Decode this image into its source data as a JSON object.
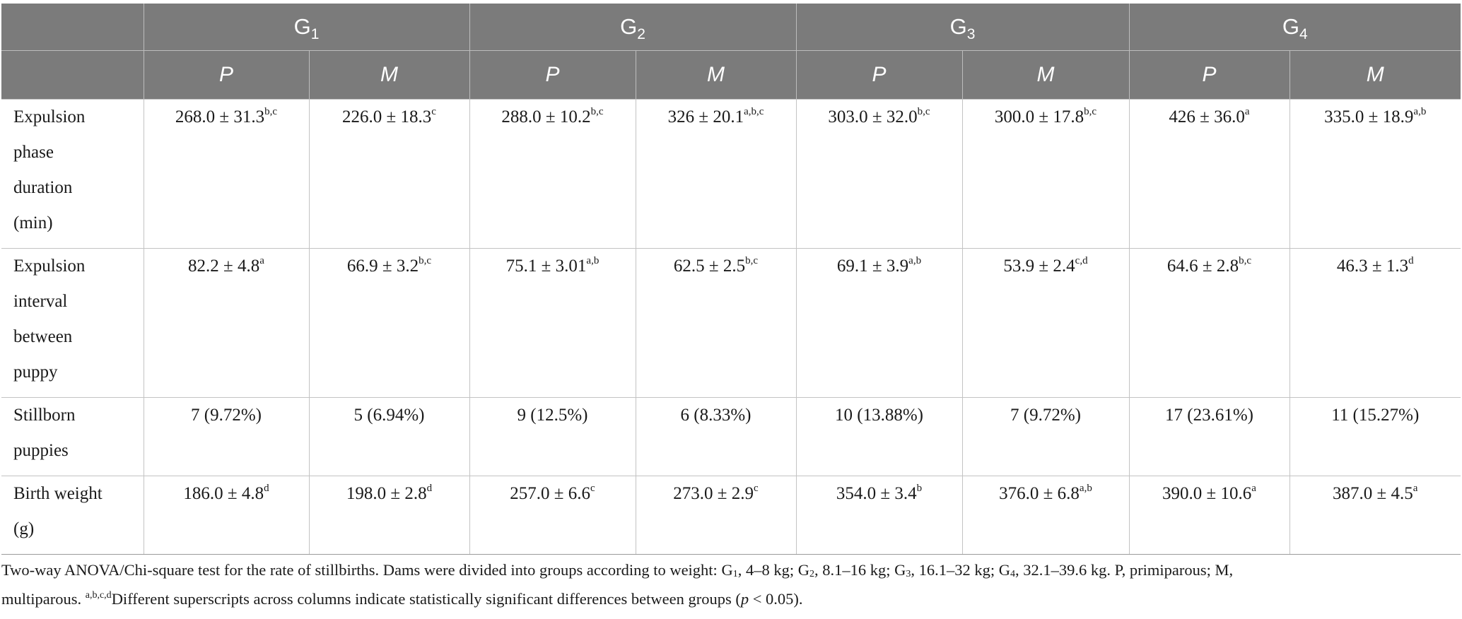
{
  "table": {
    "groups": [
      {
        "base": "G",
        "sub": "1"
      },
      {
        "base": "G",
        "sub": "2"
      },
      {
        "base": "G",
        "sub": "3"
      },
      {
        "base": "G",
        "sub": "4"
      }
    ],
    "subheaders": [
      "P",
      "M",
      "P",
      "M",
      "P",
      "M",
      "P",
      "M"
    ],
    "rows": [
      {
        "label": [
          "Expulsion",
          "phase",
          "duration",
          "(min)"
        ],
        "cells": [
          {
            "v": "268.0 ± 31.3",
            "s": "b,c"
          },
          {
            "v": "226.0 ± 18.3",
            "s": "c"
          },
          {
            "v": "288.0 ± 10.2",
            "s": "b,c"
          },
          {
            "v": "326 ± 20.1",
            "s": "a,b,c"
          },
          {
            "v": "303.0 ± 32.0",
            "s": "b,c"
          },
          {
            "v": "300.0 ± 17.8",
            "s": "b,c"
          },
          {
            "v": "426 ± 36.0",
            "s": "a"
          },
          {
            "v": "335.0 ± 18.9",
            "s": "a,b"
          }
        ]
      },
      {
        "label": [
          "Expulsion",
          "interval",
          "between",
          "puppy"
        ],
        "cells": [
          {
            "v": "82.2 ± 4.8",
            "s": "a"
          },
          {
            "v": "66.9 ± 3.2",
            "s": "b,c"
          },
          {
            "v": "75.1 ± 3.01",
            "s": "a,b"
          },
          {
            "v": "62.5 ± 2.5",
            "s": "b,c"
          },
          {
            "v": "69.1 ± 3.9",
            "s": "a,b"
          },
          {
            "v": "53.9 ± 2.4",
            "s": "c,d"
          },
          {
            "v": "64.6 ± 2.8",
            "s": "b,c"
          },
          {
            "v": "46.3 ± 1.3",
            "s": "d"
          }
        ]
      },
      {
        "label": [
          "Stillborn",
          "puppies"
        ],
        "cells": [
          {
            "v": "7 (9.72%)",
            "s": ""
          },
          {
            "v": "5 (6.94%)",
            "s": ""
          },
          {
            "v": "9 (12.5%)",
            "s": ""
          },
          {
            "v": "6 (8.33%)",
            "s": ""
          },
          {
            "v": "10 (13.88%)",
            "s": ""
          },
          {
            "v": "7 (9.72%)",
            "s": ""
          },
          {
            "v": "17 (23.61%)",
            "s": ""
          },
          {
            "v": "11 (15.27%)",
            "s": ""
          }
        ]
      },
      {
        "label": [
          "Birth weight",
          "(g)"
        ],
        "cells": [
          {
            "v": "186.0 ± 4.8",
            "s": "d"
          },
          {
            "v": "198.0 ± 2.8",
            "s": "d"
          },
          {
            "v": "257.0 ± 6.6",
            "s": "c"
          },
          {
            "v": "273.0 ± 2.9",
            "s": "c"
          },
          {
            "v": "354.0 ± 3.4",
            "s": "b"
          },
          {
            "v": "376.0 ± 6.8",
            "s": "a,b"
          },
          {
            "v": "390.0 ± 10.6",
            "s": "a"
          },
          {
            "v": "387.0 ± 4.5",
            "s": "a"
          }
        ]
      }
    ]
  },
  "footnote": {
    "line1": "Two-way ANOVA/Chi-square test for the rate of stillbirths. Dams were divided into groups according to weight:",
    "g1_base": "G",
    "g1_sub": "1",
    "g1_range": ", 4–8 kg;",
    "g2_base": "G",
    "g2_sub": "2",
    "g2_range": ", 8.1–16 kg;",
    "g3_base": "G",
    "g3_sub": "3",
    "g3_range": ", 16.1–32 kg;",
    "g4_base": "G",
    "g4_sub": "4",
    "g4_range": ", 32.1–39.6 kg. P, primiparous; M,",
    "line2_start": "multiparous.",
    "sig_letters": "a,b,c,d",
    "sig_text": "Different superscripts across columns indicate statistically significant differences between groups (",
    "p_symbol": "p",
    "p_rest": " < 0.05)."
  }
}
